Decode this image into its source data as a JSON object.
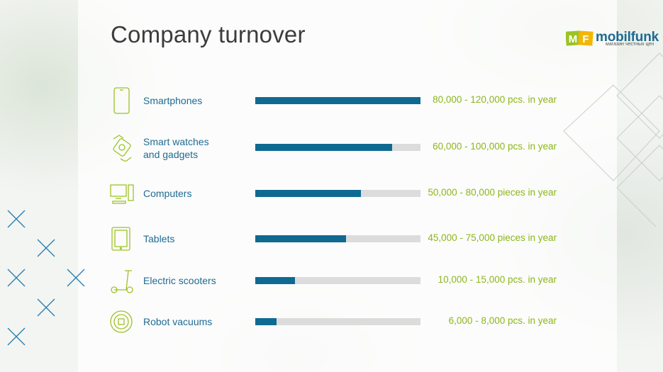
{
  "title": "Company turnover",
  "logo": {
    "letter1": "M",
    "letter2": "F",
    "brand": "mobilfunk",
    "tagline": "магазин честных цен"
  },
  "colors": {
    "bar": "#0f6a91",
    "track": "#dcdcdc",
    "label": "#1e6b93",
    "value": "#8cb61a",
    "icon": "#9cc325"
  },
  "chart_data": {
    "type": "bar",
    "orientation": "horizontal",
    "categories": [
      "Smartphones",
      "Smart watches\nand gadgets",
      "Computers",
      "Tablets",
      "Electric scooters",
      "Robot vacuums"
    ],
    "values": [
      1.0,
      0.83,
      0.64,
      0.55,
      0.24,
      0.13
    ],
    "value_labels": [
      "80,000 - 120,000 pcs. in year",
      "60,000 - 100,000 pcs. in year",
      "50,000 - 80,000 pieces in year",
      "45,000 - 75,000 pieces in year",
      "10,000 - 15,000 pcs. in year",
      "6,000 - 8,000 pcs. in year"
    ],
    "icons": [
      "smartphone-icon",
      "smartwatch-icon",
      "computer-icon",
      "tablet-icon",
      "scooter-icon",
      "robot-vacuum-icon"
    ],
    "xlim": [
      0,
      1
    ]
  }
}
